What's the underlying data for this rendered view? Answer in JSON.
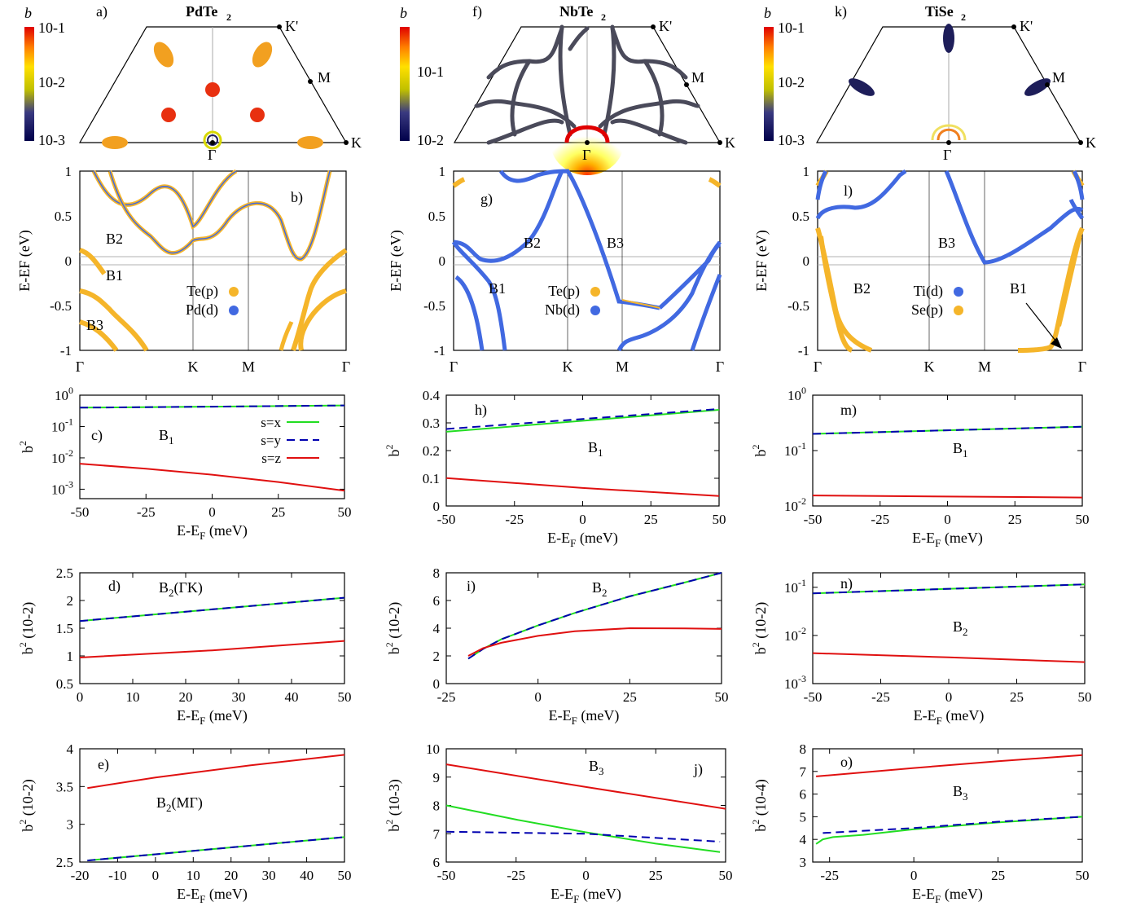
{
  "colors": {
    "te_p": "#f5b52a",
    "d_orb": "#4169e1",
    "sx": "#22dd22",
    "sy": "#0000b0",
    "sz": "#e01010",
    "gray_grid": "#b0b0b0"
  },
  "columns": [
    {
      "material_label": "PdTe",
      "material_sub": "2",
      "fs": {
        "panel_letter": "a)",
        "cbar_type": "log3",
        "cbar_top": "10-1",
        "cbar_mid": "10-2",
        "cbar_bottom": "10-3",
        "cbar_label": "b",
        "k_labels": {
          "gamma": "Γ",
          "K": "K",
          "M": "M",
          "Kp": "K'"
        }
      },
      "band": {
        "panel_letter": "b)",
        "ylabel": "E-EF (eV)",
        "y_ticks": [
          "1",
          "0.5",
          "0",
          "-0.5",
          "-1"
        ],
        "k_ticks": [
          "Γ",
          "K",
          "M",
          "Γ"
        ],
        "legend": [
          {
            "label": "Te(p)",
            "color_key": "te_p"
          },
          {
            "label": "Pd(d)",
            "color_key": "d_orb"
          }
        ],
        "band_labels": [
          "B2",
          "B1",
          "B3"
        ]
      }
    },
    {
      "material_label": "NbTe",
      "material_sub": "2",
      "fs": {
        "panel_letter": "f)",
        "cbar_type": "log2",
        "cbar_top": "10-1",
        "cbar_bottom": "10-2",
        "cbar_label": "b",
        "k_labels": {
          "gamma": "Γ",
          "K": "K",
          "M": "M",
          "Kp": "K'"
        }
      },
      "band": {
        "panel_letter": "g)",
        "ylabel": "E-EF (eV)",
        "y_ticks": [
          "1",
          "0.5",
          "0",
          "-0.5",
          "-1"
        ],
        "k_ticks": [
          "Γ",
          "K",
          "M",
          "Γ"
        ],
        "legend": [
          {
            "label": "Te(p)",
            "color_key": "te_p"
          },
          {
            "label": "Nb(d)",
            "color_key": "d_orb"
          }
        ],
        "band_labels": [
          "B2",
          "B3",
          "B1"
        ]
      }
    },
    {
      "material_label": "TiSe",
      "material_sub": "2",
      "fs": {
        "panel_letter": "k)",
        "cbar_type": "log3",
        "cbar_top": "10-1",
        "cbar_mid": "10-2",
        "cbar_bottom": "10-3",
        "cbar_label": "b",
        "k_labels": {
          "gamma": "Γ",
          "K": "K",
          "M": "M",
          "Kp": "K'"
        }
      },
      "band": {
        "panel_letter": "l)",
        "ylabel": "E-EF (eV)",
        "y_ticks": [
          "1",
          "0.5",
          "0",
          "-0.5",
          "-1"
        ],
        "k_ticks": [
          "Γ",
          "K",
          "M",
          "Γ"
        ],
        "legend": [
          {
            "label": "Ti(d)",
            "color_key": "d_orb"
          },
          {
            "label": "Se(p)",
            "color_key": "te_p"
          }
        ],
        "band_labels": [
          "B3",
          "B2",
          "B1"
        ]
      }
    }
  ],
  "chart_data": [
    {
      "id": "c",
      "type": "line",
      "yscale": "log",
      "xlim": [
        -50,
        50
      ],
      "ylim": [
        0.0005,
        1
      ],
      "xticks": [
        -50,
        -25,
        0,
        25,
        50
      ],
      "xtick_labels": [
        "-50",
        "-25",
        "0",
        "25",
        "50"
      ],
      "yticks": [
        1,
        0.1,
        0.01,
        0.001
      ],
      "ytick_labels": [
        "10^0",
        "10^-1",
        "10^-2",
        "10^-3"
      ],
      "xlabel": "E-EF (meV)",
      "ylabel": "b2",
      "ylabel_unit": "",
      "panel_letter": "c)",
      "band_label": "B1",
      "legend": [
        "s=x",
        "s=y",
        "s=z"
      ],
      "series": [
        {
          "name": "s=x",
          "style": "x",
          "x": [
            -50,
            0,
            50
          ],
          "y": [
            0.4,
            0.43,
            0.47
          ]
        },
        {
          "name": "s=y",
          "style": "y",
          "x": [
            -50,
            0,
            50
          ],
          "y": [
            0.4,
            0.43,
            0.47
          ]
        },
        {
          "name": "s=z",
          "style": "z",
          "x": [
            -50,
            -25,
            0,
            25,
            50
          ],
          "y": [
            0.0065,
            0.0045,
            0.0029,
            0.0017,
            0.0009
          ]
        }
      ]
    },
    {
      "id": "d",
      "type": "line",
      "yscale": "linear",
      "xlim": [
        0,
        50
      ],
      "ylim": [
        0.5,
        2.5
      ],
      "xticks": [
        0,
        10,
        20,
        30,
        40,
        50
      ],
      "xtick_labels": [
        "0",
        "10",
        "20",
        "30",
        "40",
        "50"
      ],
      "yticks": [
        0.5,
        1,
        1.5,
        2,
        2.5
      ],
      "ytick_labels": [
        "0.5",
        "1",
        "1.5",
        "2",
        "2.5"
      ],
      "xlabel": "E-EF (meV)",
      "ylabel": "b2",
      "ylabel_unit": "(10-2)",
      "panel_letter": "d)",
      "band_label": "B2(ΓK)",
      "series": [
        {
          "name": "s=x",
          "style": "x",
          "x": [
            0,
            50
          ],
          "y": [
            1.63,
            2.05
          ]
        },
        {
          "name": "s=y",
          "style": "y",
          "x": [
            0,
            50
          ],
          "y": [
            1.63,
            2.05
          ]
        },
        {
          "name": "s=z",
          "style": "z",
          "x": [
            0,
            25,
            50
          ],
          "y": [
            0.97,
            1.1,
            1.27
          ]
        }
      ]
    },
    {
      "id": "e",
      "type": "line",
      "yscale": "linear",
      "xlim": [
        -20,
        50
      ],
      "ylim": [
        2.5,
        4
      ],
      "xticks": [
        -20,
        -10,
        0,
        10,
        20,
        30,
        40,
        50
      ],
      "xtick_labels": [
        "-20",
        "-10",
        "0",
        "10",
        "20",
        "30",
        "40",
        "50"
      ],
      "yticks": [
        2.5,
        3,
        3.5,
        4
      ],
      "ytick_labels": [
        "2.5",
        "3",
        "3.5",
        "4"
      ],
      "xlabel": "E-EF (meV)",
      "ylabel": "b2",
      "ylabel_unit": "(10-2)",
      "panel_letter": "e)",
      "band_label": "B2(MΓ)",
      "series": [
        {
          "name": "s=x",
          "style": "x",
          "x": [
            -18,
            50
          ],
          "y": [
            2.52,
            2.83
          ]
        },
        {
          "name": "s=y",
          "style": "y",
          "x": [
            -18,
            50
          ],
          "y": [
            2.52,
            2.83
          ]
        },
        {
          "name": "s=z",
          "style": "z",
          "x": [
            -18,
            0,
            25,
            50
          ],
          "y": [
            3.48,
            3.62,
            3.78,
            3.92
          ]
        }
      ]
    },
    {
      "id": "h",
      "type": "line",
      "yscale": "linear",
      "xlim": [
        -50,
        50
      ],
      "ylim": [
        0,
        0.4
      ],
      "xticks": [
        -50,
        -25,
        0,
        25,
        50
      ],
      "xtick_labels": [
        "-50",
        "-25",
        "0",
        "25",
        "50"
      ],
      "yticks": [
        0,
        0.1,
        0.2,
        0.3,
        0.4
      ],
      "ytick_labels": [
        "0",
        "0.1",
        "0.2",
        "0.3",
        "0.4"
      ],
      "xlabel": "E-EF (meV)",
      "ylabel": "b2",
      "ylabel_unit": "",
      "panel_letter": "h)",
      "band_label": "B1",
      "series": [
        {
          "name": "s=x",
          "style": "x",
          "x": [
            -50,
            50
          ],
          "y": [
            0.268,
            0.347
          ]
        },
        {
          "name": "s=y",
          "style": "y",
          "x": [
            -50,
            50
          ],
          "y": [
            0.278,
            0.35
          ]
        },
        {
          "name": "s=z",
          "style": "z",
          "x": [
            -50,
            0,
            50
          ],
          "y": [
            0.101,
            0.065,
            0.036
          ]
        }
      ]
    },
    {
      "id": "i",
      "type": "line",
      "yscale": "linear",
      "xlim": [
        -25,
        50
      ],
      "ylim": [
        0,
        8
      ],
      "xticks": [
        -25,
        0,
        25,
        50
      ],
      "xtick_labels": [
        "-25",
        "0",
        "25",
        "50"
      ],
      "yticks": [
        0,
        2,
        4,
        6,
        8
      ],
      "ytick_labels": [
        "0",
        "2",
        "4",
        "6",
        "8"
      ],
      "xlabel": "E-EF (meV)",
      "ylabel": "b2",
      "ylabel_unit": "(10-2)",
      "panel_letter": "i)",
      "band_label": "B2",
      "series": [
        {
          "name": "s=x",
          "style": "x",
          "x": [
            -19,
            -15,
            -10,
            0,
            10,
            25,
            40,
            50
          ],
          "y": [
            1.8,
            2.5,
            3.2,
            4.2,
            5.1,
            6.3,
            7.3,
            8.0
          ]
        },
        {
          "name": "s=y",
          "style": "y",
          "x": [
            -19,
            -15,
            -10,
            0,
            10,
            25,
            40,
            50
          ],
          "y": [
            1.8,
            2.5,
            3.2,
            4.2,
            5.1,
            6.3,
            7.3,
            8.0
          ]
        },
        {
          "name": "s=z",
          "style": "z",
          "x": [
            -19,
            -15,
            -10,
            0,
            10,
            25,
            40,
            50
          ],
          "y": [
            2.0,
            2.55,
            2.95,
            3.45,
            3.78,
            4.0,
            3.98,
            3.95
          ]
        }
      ]
    },
    {
      "id": "j",
      "type": "line",
      "yscale": "linear",
      "xlim": [
        -50,
        50
      ],
      "ylim": [
        6,
        10
      ],
      "xticks": [
        -50,
        -25,
        0,
        25,
        50
      ],
      "xtick_labels": [
        "-50",
        "-25",
        "0",
        "25",
        "50"
      ],
      "yticks": [
        6,
        7,
        8,
        9,
        10
      ],
      "ytick_labels": [
        "6",
        "7",
        "8",
        "9",
        "10"
      ],
      "xlabel": "E-EF (meV)",
      "ylabel": "b2",
      "ylabel_unit": "(10-3)",
      "panel_letter": "j)",
      "band_label": "B3",
      "series": [
        {
          "name": "s=x",
          "style": "x",
          "x": [
            -50,
            -25,
            0,
            25,
            48
          ],
          "y": [
            8.0,
            7.5,
            7.05,
            6.65,
            6.35
          ]
        },
        {
          "name": "s=y",
          "style": "y",
          "x": [
            -50,
            0,
            48
          ],
          "y": [
            7.07,
            7.0,
            6.72
          ]
        },
        {
          "name": "s=z",
          "style": "z",
          "x": [
            -50,
            0,
            50
          ],
          "y": [
            9.45,
            8.65,
            7.88
          ]
        }
      ]
    },
    {
      "id": "m",
      "type": "line",
      "yscale": "log",
      "xlim": [
        -50,
        50
      ],
      "ylim": [
        0.01,
        1
      ],
      "xticks": [
        -50,
        -25,
        0,
        25,
        50
      ],
      "xtick_labels": [
        "-50",
        "-25",
        "0",
        "25",
        "50"
      ],
      "yticks": [
        1,
        0.1,
        0.01
      ],
      "ytick_labels": [
        "10^0",
        "10^-1",
        "10^-2"
      ],
      "xlabel": "E-EF (meV)",
      "ylabel": "b2",
      "ylabel_unit": "",
      "panel_letter": "m)",
      "band_label": "B1",
      "series": [
        {
          "name": "s=x",
          "style": "x",
          "x": [
            -50,
            50
          ],
          "y": [
            0.2,
            0.27
          ]
        },
        {
          "name": "s=y",
          "style": "y",
          "x": [
            -50,
            50
          ],
          "y": [
            0.2,
            0.27
          ]
        },
        {
          "name": "s=z",
          "style": "z",
          "x": [
            -50,
            50
          ],
          "y": [
            0.0155,
            0.0142
          ]
        }
      ]
    },
    {
      "id": "n",
      "type": "line",
      "yscale": "log",
      "xlim": [
        -50,
        50
      ],
      "ylim": [
        0.001,
        0.2
      ],
      "xticks": [
        -50,
        -25,
        0,
        25,
        50
      ],
      "xtick_labels": [
        "-50",
        "-25",
        "0",
        "25",
        "50"
      ],
      "yticks": [
        0.1,
        0.01,
        0.001
      ],
      "ytick_labels": [
        "10^-1",
        "10^-2",
        "10^-3"
      ],
      "xlabel": "E-EF (meV)",
      "ylabel": "b2",
      "ylabel_unit": "(10-2)",
      "panel_letter": "n)",
      "band_label": "B2",
      "series": [
        {
          "name": "s=x",
          "style": "x",
          "x": [
            -50,
            50
          ],
          "y": [
            0.075,
            0.115
          ]
        },
        {
          "name": "s=y",
          "style": "y",
          "x": [
            -50,
            50
          ],
          "y": [
            0.075,
            0.115
          ]
        },
        {
          "name": "s=z",
          "style": "z",
          "x": [
            -50,
            0,
            50
          ],
          "y": [
            0.0043,
            0.0035,
            0.0028
          ]
        }
      ]
    },
    {
      "id": "o",
      "type": "line",
      "yscale": "linear",
      "xlim": [
        -30,
        50
      ],
      "ylim": [
        3,
        8
      ],
      "xticks": [
        -25,
        0,
        25,
        50
      ],
      "xtick_labels": [
        "-25",
        "0",
        "25",
        "50"
      ],
      "yticks": [
        3,
        4,
        5,
        6,
        7,
        8
      ],
      "ytick_labels": [
        "3",
        "4",
        "5",
        "6",
        "7",
        "8"
      ],
      "xlabel": "E-EF (meV)",
      "ylabel": "b2",
      "ylabel_unit": "(10-4)",
      "panel_letter": "o)",
      "band_label": "B3",
      "series": [
        {
          "name": "s=x",
          "style": "x",
          "x": [
            -29,
            -27,
            -24,
            -15,
            0,
            25,
            50
          ],
          "y": [
            3.8,
            4.0,
            4.1,
            4.2,
            4.45,
            4.75,
            5.0
          ]
        },
        {
          "name": "s=y",
          "style": "y",
          "x": [
            -27,
            0,
            25,
            50
          ],
          "y": [
            4.28,
            4.5,
            4.78,
            5.0
          ]
        },
        {
          "name": "s=z",
          "style": "z",
          "x": [
            -29,
            0,
            25,
            50
          ],
          "y": [
            6.78,
            7.15,
            7.45,
            7.72
          ]
        }
      ]
    }
  ]
}
